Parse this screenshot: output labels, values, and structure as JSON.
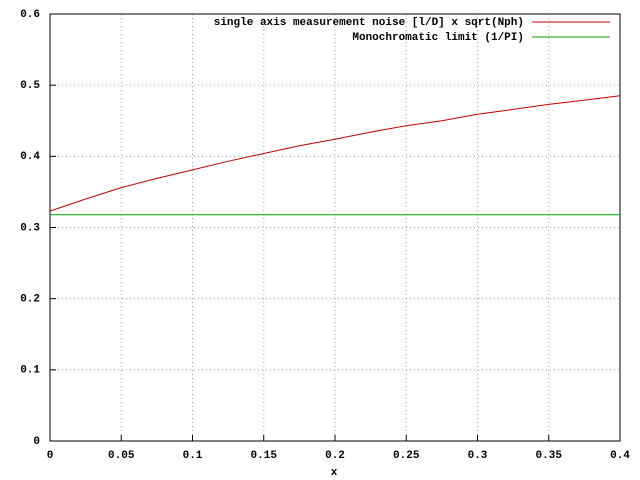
{
  "chart_data": {
    "type": "line",
    "xlabel": "x",
    "x": [
      0,
      0.025,
      0.05,
      0.075,
      0.1,
      0.125,
      0.15,
      0.175,
      0.2,
      0.225,
      0.25,
      0.275,
      0.3,
      0.325,
      0.35,
      0.375,
      0.4
    ],
    "series": [
      {
        "name": "single axis measurement noise [l/D] x sqrt(Nph)",
        "color": "#c00000",
        "values": [
          0.323,
          0.34,
          0.356,
          0.369,
          0.381,
          0.393,
          0.404,
          0.415,
          0.424,
          0.434,
          0.443,
          0.45,
          0.459,
          0.466,
          0.473,
          0.479,
          0.485
        ]
      },
      {
        "name": "Monochromatic limit (1/PI)",
        "color": "#00a000",
        "values": [
          0.318,
          0.318,
          0.318,
          0.318,
          0.318,
          0.318,
          0.318,
          0.318,
          0.318,
          0.318,
          0.318,
          0.318,
          0.318,
          0.318,
          0.318,
          0.318,
          0.318
        ]
      }
    ],
    "xlim": [
      0,
      0.4
    ],
    "xticks": [
      0,
      0.05,
      0.1,
      0.15,
      0.2,
      0.25,
      0.3,
      0.35,
      0.4
    ],
    "ylim": [
      0,
      0.6
    ],
    "yticks": [
      0,
      0.1,
      0.2,
      0.3,
      0.4,
      0.5,
      0.6
    ],
    "grid": true,
    "legend": "top-right"
  }
}
